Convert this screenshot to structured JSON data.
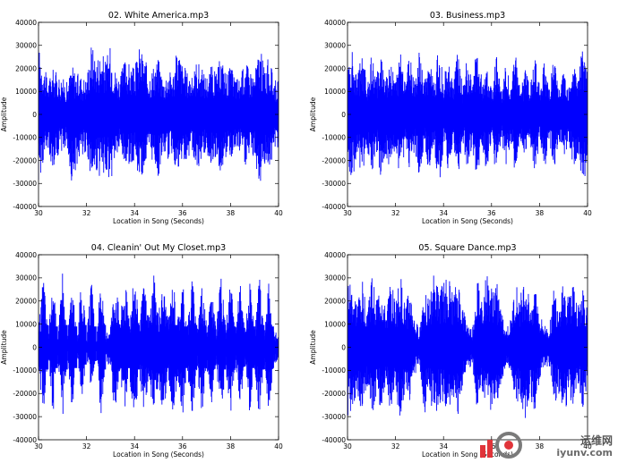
{
  "watermark": {
    "title": "运维网",
    "site": "iyunv.com",
    "colors": {
      "red": "#e0343a",
      "gray": "#7a7a7a"
    }
  },
  "chart_data": [
    {
      "type": "line",
      "title": "02. White America.mp3",
      "xlabel": "Location in Song (Seconds)",
      "ylabel": "Amplitude",
      "xlim": [
        30,
        40
      ],
      "ylim": [
        -40000,
        40000
      ],
      "xticks": [
        30,
        32,
        34,
        36,
        38,
        40
      ],
      "yticks": [
        -40000,
        -30000,
        -20000,
        -10000,
        0,
        10000,
        20000,
        30000,
        40000
      ],
      "color": "#0000ff",
      "grid": false,
      "series": [
        {
          "x": [
            30.0,
            30.2,
            30.4,
            30.6,
            30.8,
            31.0,
            31.2,
            31.4,
            31.6,
            31.8,
            32.0,
            32.2,
            32.4,
            32.6,
            32.8,
            33.0,
            33.2,
            33.4,
            33.6,
            33.8,
            34.0,
            34.2,
            34.4,
            34.6,
            34.8,
            35.0,
            35.2,
            35.4,
            35.6,
            35.8,
            36.0,
            36.2,
            36.4,
            36.6,
            36.8,
            37.0,
            37.2,
            37.4,
            37.6,
            37.8,
            38.0,
            38.2,
            38.4,
            38.6,
            38.8,
            39.0,
            39.2,
            39.4,
            39.6,
            39.8,
            40.0
          ],
          "y_max": [
            30000,
            22000,
            15000,
            20000,
            18000,
            16000,
            14000,
            22000,
            18000,
            17000,
            16000,
            32000,
            25000,
            28000,
            24000,
            30000,
            20000,
            16000,
            25000,
            22000,
            20000,
            30000,
            26000,
            18000,
            22000,
            25000,
            15000,
            20000,
            18000,
            30000,
            22000,
            19000,
            16000,
            25000,
            20000,
            17000,
            22000,
            18000,
            26000,
            19000,
            21000,
            17000,
            16000,
            24000,
            20000,
            18000,
            30000,
            22000,
            25000,
            16000,
            15000
          ],
          "y_min": [
            -30000,
            -22000,
            -16000,
            -24000,
            -18000,
            -16000,
            -15000,
            -32000,
            -22000,
            -18000,
            -16000,
            -30000,
            -26000,
            -29000,
            -24000,
            -32000,
            -20000,
            -17000,
            -25000,
            -22000,
            -20000,
            -28000,
            -26000,
            -19000,
            -22000,
            -28000,
            -16000,
            -20000,
            -18000,
            -30000,
            -22000,
            -19000,
            -16000,
            -25000,
            -20000,
            -17000,
            -22000,
            -18000,
            -26000,
            -19000,
            -21000,
            -17000,
            -16000,
            -24000,
            -20000,
            -18000,
            -32000,
            -22000,
            -25000,
            -16000,
            -15000
          ]
        }
      ]
    },
    {
      "type": "line",
      "title": "03. Business.mp3",
      "xlabel": "Location in Song (Seconds)",
      "ylabel": "Amplitude",
      "xlim": [
        30,
        40
      ],
      "ylim": [
        -40000,
        40000
      ],
      "xticks": [
        30,
        32,
        34,
        36,
        38,
        40
      ],
      "yticks": [
        -40000,
        -30000,
        -20000,
        -10000,
        0,
        10000,
        20000,
        30000,
        40000
      ],
      "color": "#0000ff",
      "grid": false,
      "series": [
        {
          "x": [
            30.0,
            30.2,
            30.4,
            30.6,
            30.8,
            31.0,
            31.2,
            31.4,
            31.6,
            31.8,
            32.0,
            32.2,
            32.4,
            32.6,
            32.8,
            33.0,
            33.2,
            33.4,
            33.6,
            33.8,
            34.0,
            34.2,
            34.4,
            34.6,
            34.8,
            35.0,
            35.2,
            35.4,
            35.6,
            35.8,
            36.0,
            36.2,
            36.4,
            36.6,
            36.8,
            37.0,
            37.2,
            37.4,
            37.6,
            37.8,
            38.0,
            38.2,
            38.4,
            38.6,
            38.8,
            39.0,
            39.2,
            39.4,
            39.6,
            39.8,
            40.0
          ],
          "y_max": [
            20000,
            28000,
            15000,
            30000,
            14000,
            26000,
            16000,
            28000,
            18000,
            25000,
            14000,
            30000,
            16000,
            26000,
            15000,
            28000,
            14000,
            25000,
            15000,
            30000,
            16000,
            24000,
            14000,
            28000,
            12000,
            26000,
            14000,
            30000,
            16000,
            24000,
            12000,
            28000,
            10000,
            22000,
            12000,
            27000,
            10000,
            20000,
            12000,
            26000,
            14000,
            24000,
            12000,
            25000,
            10000,
            20000,
            12000,
            23000,
            16000,
            30000,
            20000
          ],
          "y_min": [
            -22000,
            -30000,
            -16000,
            -32000,
            -14000,
            -28000,
            -16000,
            -30000,
            -18000,
            -26000,
            -14000,
            -32000,
            -16000,
            -28000,
            -15000,
            -30000,
            -14000,
            -26000,
            -15000,
            -32000,
            -16000,
            -25000,
            -14000,
            -29000,
            -12000,
            -27000,
            -14000,
            -30000,
            -16000,
            -26000,
            -12000,
            -28000,
            -10000,
            -23000,
            -12000,
            -28000,
            -10000,
            -21000,
            -12000,
            -26000,
            -14000,
            -25000,
            -12000,
            -26000,
            -10000,
            -21000,
            -12000,
            -24000,
            -18000,
            -32000,
            -22000
          ]
        }
      ]
    },
    {
      "type": "line",
      "title": "04. Cleanin' Out My Closet.mp3",
      "xlabel": "Location in Song (Seconds)",
      "ylabel": "Amplitude",
      "xlim": [
        30,
        40
      ],
      "ylim": [
        -40000,
        40000
      ],
      "xticks": [
        30,
        32,
        34,
        36,
        38,
        40
      ],
      "yticks": [
        -40000,
        -30000,
        -20000,
        -10000,
        0,
        10000,
        20000,
        30000,
        40000
      ],
      "color": "#0000ff",
      "grid": false,
      "series": [
        {
          "x": [
            30.0,
            30.2,
            30.4,
            30.6,
            30.8,
            31.0,
            31.2,
            31.4,
            31.6,
            31.8,
            32.0,
            32.2,
            32.4,
            32.6,
            32.8,
            33.0,
            33.2,
            33.4,
            33.6,
            33.8,
            34.0,
            34.2,
            34.4,
            34.6,
            34.8,
            35.0,
            35.2,
            35.4,
            35.6,
            35.8,
            36.0,
            36.2,
            36.4,
            36.6,
            36.8,
            37.0,
            37.2,
            37.4,
            37.6,
            37.8,
            38.0,
            38.2,
            38.4,
            38.6,
            38.8,
            39.0,
            39.2,
            39.4,
            39.6,
            39.8,
            40.0
          ],
          "y_max": [
            8000,
            32000,
            6000,
            30000,
            5000,
            32000,
            4000,
            30000,
            3000,
            32000,
            4000,
            30000,
            2000,
            32000,
            4000,
            12000,
            32000,
            14000,
            30000,
            15000,
            32000,
            13000,
            28000,
            14000,
            32000,
            15000,
            30000,
            12000,
            32000,
            13000,
            30000,
            10000,
            32000,
            9000,
            30000,
            10000,
            26000,
            8000,
            32000,
            9000,
            30000,
            8000,
            28000,
            7000,
            30000,
            8000,
            32000,
            7000,
            30000,
            8000,
            5000
          ],
          "y_min": [
            -8000,
            -32000,
            -6000,
            -30000,
            -5000,
            -32000,
            -3000,
            -30000,
            -2000,
            -25000,
            -3000,
            -20000,
            -2000,
            -32000,
            -4000,
            -12000,
            -32000,
            -14000,
            -30000,
            -15000,
            -32000,
            -13000,
            -28000,
            -14000,
            -32000,
            -15000,
            -30000,
            -12000,
            -32000,
            -13000,
            -30000,
            -10000,
            -32000,
            -9000,
            -30000,
            -10000,
            -26000,
            -8000,
            -32000,
            -9000,
            -30000,
            -8000,
            -28000,
            -7000,
            -30000,
            -8000,
            -32000,
            -7000,
            -30000,
            -8000,
            -5000
          ]
        }
      ]
    },
    {
      "type": "line",
      "title": "05. Square Dance.mp3",
      "xlabel": "Location in Song (Seconds)",
      "ylabel": "Amplitude",
      "xlim": [
        30,
        40
      ],
      "ylim": [
        -40000,
        40000
      ],
      "xticks": [
        30,
        32,
        34,
        36,
        38,
        40
      ],
      "yticks": [
        -40000,
        -30000,
        -20000,
        -10000,
        0,
        10000,
        20000,
        30000,
        40000
      ],
      "color": "#0000ff",
      "grid": false,
      "series": [
        {
          "x": [
            30.0,
            30.2,
            30.4,
            30.6,
            30.8,
            31.0,
            31.2,
            31.4,
            31.6,
            31.8,
            32.0,
            32.2,
            32.4,
            32.6,
            32.8,
            33.0,
            33.2,
            33.4,
            33.6,
            33.8,
            34.0,
            34.2,
            34.4,
            34.6,
            34.8,
            35.0,
            35.2,
            35.4,
            35.6,
            35.8,
            36.0,
            36.2,
            36.4,
            36.6,
            36.8,
            37.0,
            37.2,
            37.4,
            37.6,
            37.8,
            38.0,
            38.2,
            38.4,
            38.6,
            38.8,
            39.0,
            39.2,
            39.4,
            39.6,
            39.8,
            40.0
          ],
          "y_max": [
            32000,
            26000,
            20000,
            30000,
            18000,
            32000,
            22000,
            28000,
            15000,
            30000,
            20000,
            32000,
            18000,
            26000,
            12000,
            8000,
            30000,
            20000,
            32000,
            25000,
            28000,
            32000,
            22000,
            30000,
            18000,
            10000,
            8000,
            30000,
            22000,
            32000,
            26000,
            30000,
            16000,
            8000,
            12000,
            28000,
            22000,
            32000,
            20000,
            30000,
            14000,
            10000,
            8000,
            26000,
            20000,
            32000,
            22000,
            30000,
            18000,
            28000,
            16000
          ],
          "y_min": [
            -32000,
            -26000,
            -20000,
            -30000,
            -18000,
            -32000,
            -22000,
            -28000,
            -15000,
            -30000,
            -20000,
            -32000,
            -18000,
            -26000,
            -12000,
            -8000,
            -30000,
            -20000,
            -32000,
            -25000,
            -28000,
            -32000,
            -22000,
            -30000,
            -18000,
            -10000,
            -8000,
            -30000,
            -22000,
            -32000,
            -26000,
            -30000,
            -16000,
            -8000,
            -12000,
            -28000,
            -22000,
            -32000,
            -20000,
            -30000,
            -14000,
            -10000,
            -8000,
            -26000,
            -20000,
            -32000,
            -22000,
            -30000,
            -18000,
            -28000,
            -16000
          ]
        }
      ]
    }
  ]
}
